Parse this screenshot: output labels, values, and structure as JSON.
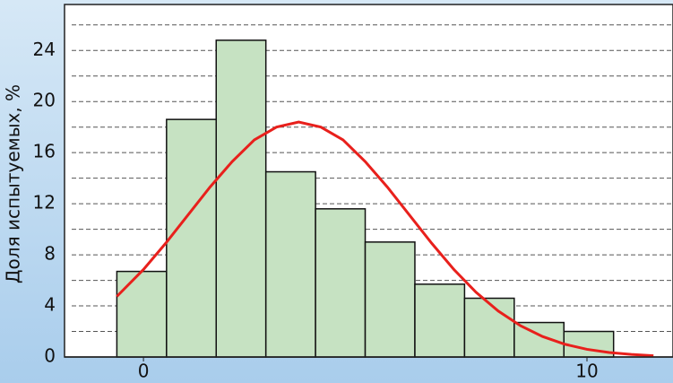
{
  "chart_data": {
    "type": "histogram",
    "ylabel": "Доля испытуемых, %",
    "bins": [
      -0.6,
      0.52,
      1.64,
      2.76,
      3.88,
      5.0,
      6.12,
      7.24,
      8.36,
      9.48,
      10.6
    ],
    "values": [
      6.7,
      18.6,
      24.8,
      14.5,
      11.6,
      9.0,
      5.7,
      4.6,
      2.7,
      2.0
    ],
    "color": "#c6e2c2",
    "curve": {
      "color": "#e8201c",
      "x": [
        -0.6,
        0,
        0.5,
        1,
        1.5,
        2,
        2.5,
        3,
        3.5,
        4,
        4.5,
        5,
        5.5,
        6,
        6.5,
        7,
        7.5,
        8,
        8.5,
        9,
        9.5,
        10,
        10.5,
        11,
        11.5
      ],
      "values": [
        4.74,
        6.85,
        8.9,
        11.1,
        13.3,
        15.3,
        17.0,
        18.0,
        18.4,
        18.0,
        17.0,
        15.3,
        13.3,
        11.1,
        8.9,
        6.85,
        5.06,
        3.6,
        2.45,
        1.6,
        1.0,
        0.6,
        0.35,
        0.2,
        0.1
      ]
    },
    "xlim": [
      -1.78,
      11.94
    ],
    "xticks": [
      0,
      10
    ],
    "ylim": [
      0,
      27.6
    ],
    "yticks": [
      0,
      4,
      8,
      12,
      16,
      20,
      24
    ],
    "minor_yticks": [
      2,
      6,
      10,
      14,
      18,
      22,
      26
    ],
    "grid": true
  }
}
